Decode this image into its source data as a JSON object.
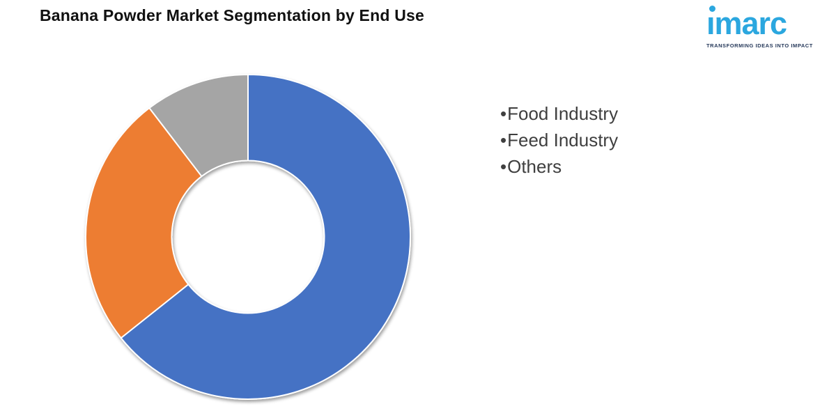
{
  "title": "Banana Powder Market Segmentation by End Use",
  "logo": {
    "brand": "imarc",
    "brand_display": "ımarc",
    "tagline": "TRANSFORMING IDEAS INTO IMPACT",
    "brand_color": "#2BA7DF",
    "tagline_color": "#26395A"
  },
  "legend": {
    "bullet": "•",
    "position": "right",
    "text_color": "#3F3F3F"
  },
  "chart_data": {
    "type": "pie",
    "subtype": "donut",
    "title": "Banana Powder Market Segmentation by End Use",
    "labels": [
      "Food Industry",
      "Feed Industry",
      "Others"
    ],
    "values": [
      64.3,
      25.3,
      10.4
    ],
    "unit": "percent_estimated_from_arc_angles",
    "colors": [
      "#4472C4",
      "#ED7D31",
      "#A5A5A5"
    ],
    "start_angle_deg": 0,
    "direction": "clockwise",
    "inner_radius_ratio": 0.47,
    "slice_border_color": "#FFFFFF",
    "legend_position": "right",
    "data_labels_shown": false
  }
}
